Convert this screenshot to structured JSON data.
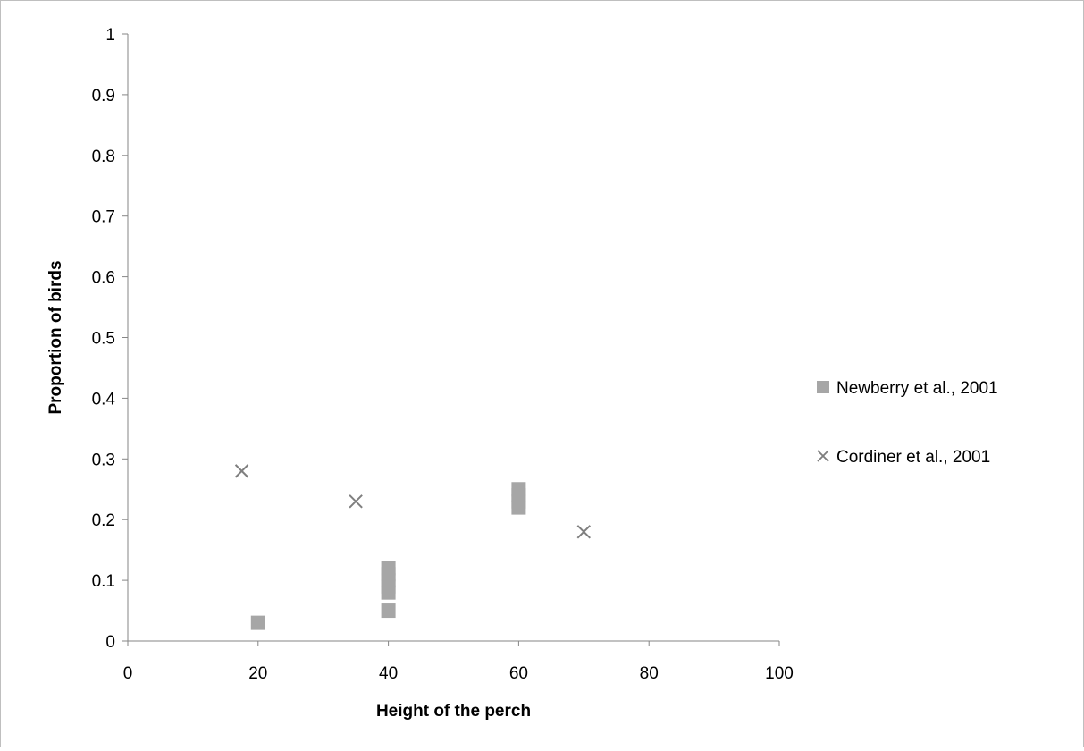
{
  "chart_data": {
    "type": "scatter",
    "title": "",
    "xlabel": "Height of the perch",
    "ylabel": "Proportion of birds",
    "xlim": [
      0,
      100
    ],
    "ylim": [
      0,
      1
    ],
    "x_ticks": [
      "0",
      "20",
      "40",
      "60",
      "80",
      "100"
    ],
    "y_ticks": [
      "0",
      "0.1",
      "0.2",
      "0.3",
      "0.4",
      "0.5",
      "0.6",
      "0.7",
      "0.8",
      "0.9",
      "1"
    ],
    "grid": false,
    "legend_position": "right",
    "series": [
      {
        "name": "Newberry et al., 2001",
        "marker": "square",
        "color": "#a6a6a6",
        "points": [
          {
            "x": 20,
            "y": 0.03
          },
          {
            "x": 40,
            "y": 0.05
          },
          {
            "x": 40,
            "y": 0.08
          },
          {
            "x": 40,
            "y": 0.09
          },
          {
            "x": 40,
            "y": 0.1
          },
          {
            "x": 40,
            "y": 0.11
          },
          {
            "x": 40,
            "y": 0.12
          },
          {
            "x": 60,
            "y": 0.22
          },
          {
            "x": 60,
            "y": 0.23
          },
          {
            "x": 60,
            "y": 0.24
          },
          {
            "x": 60,
            "y": 0.25
          }
        ]
      },
      {
        "name": "Cordiner et al., 2001",
        "marker": "x",
        "color": "#7f7f7f",
        "points": [
          {
            "x": 17.5,
            "y": 0.28
          },
          {
            "x": 35,
            "y": 0.23
          },
          {
            "x": 70,
            "y": 0.18
          }
        ]
      }
    ]
  }
}
